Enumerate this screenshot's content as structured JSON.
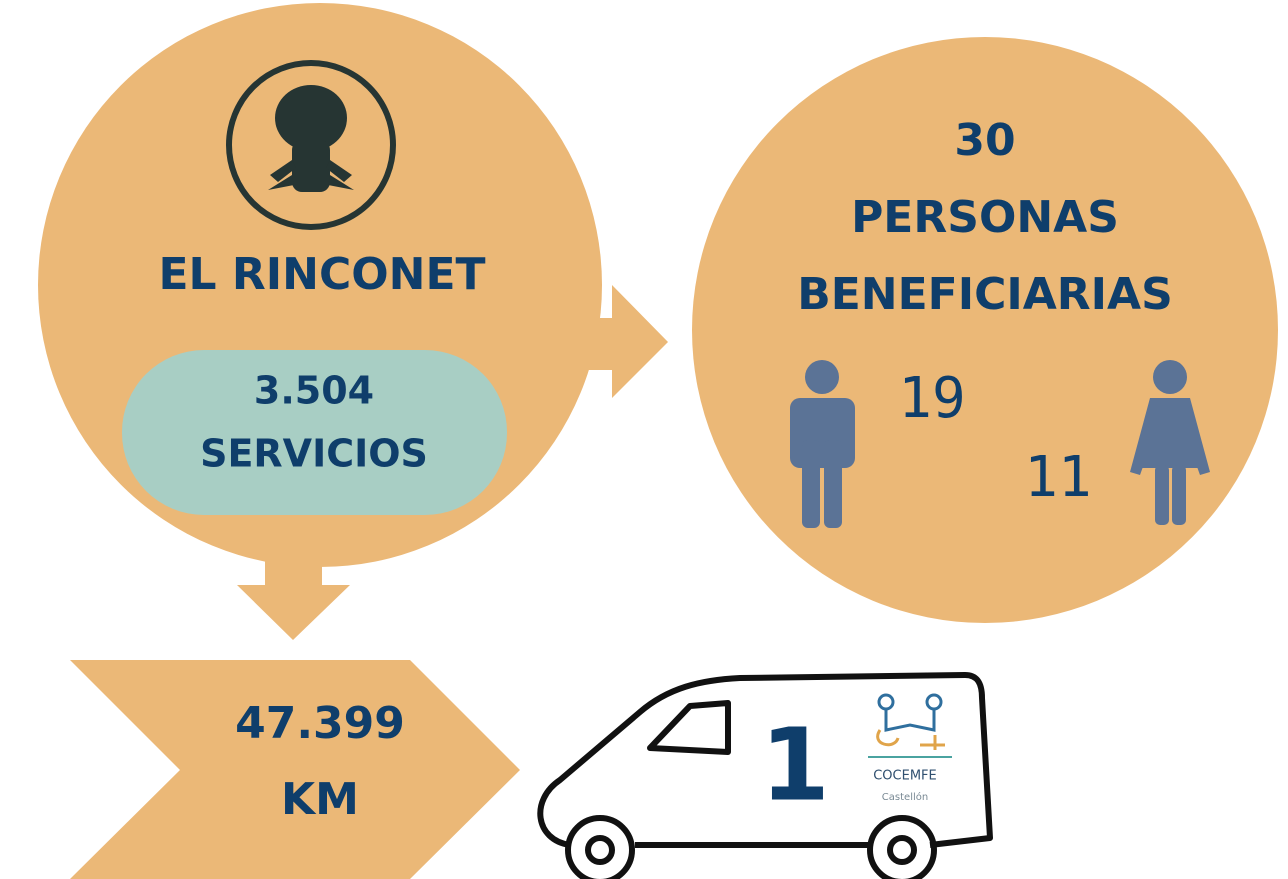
{
  "left": {
    "title": "EL RINCONET",
    "services_value": "3.504",
    "services_label": "SERVICIOS"
  },
  "right": {
    "total": "30",
    "line1": "PERSONAS",
    "line2": "BENEFICIARIAS",
    "men": "19",
    "women": "11"
  },
  "distance": {
    "value": "47.399",
    "unit": "KM"
  },
  "vehicle": {
    "count": "1",
    "logo": "COCEMFE",
    "logo_sub": "Castellón"
  }
}
